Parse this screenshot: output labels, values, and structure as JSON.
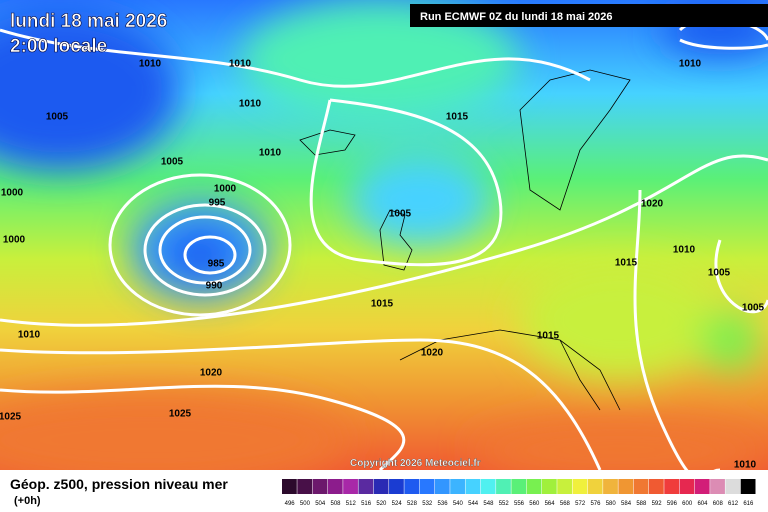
{
  "header": {
    "date": "lundi 18 mai 2026",
    "time": "2:00 locale",
    "run": "Run ECMWF 0Z du lundi 18 mai 2026"
  },
  "copyright": "Copyright 2026 Meteociel.fr",
  "legend": {
    "title": "Géop. z500, pression niveau mer",
    "step": "(+0h)",
    "levels": [
      496,
      500,
      504,
      508,
      512,
      516,
      520,
      524,
      528,
      532,
      536,
      540,
      544,
      548,
      552,
      556,
      560,
      564,
      568,
      572,
      576,
      580,
      584,
      588,
      592,
      596,
      600,
      604,
      608,
      612,
      616
    ],
    "colors": [
      "#2c0a2c",
      "#481048",
      "#6c186c",
      "#8c1c8c",
      "#a828a8",
      "#5a2aa0",
      "#2a2ab4",
      "#1a3cd2",
      "#1e5af0",
      "#2878ff",
      "#3296ff",
      "#3cb4ff",
      "#46d2ff",
      "#50f0f0",
      "#50f0b4",
      "#5af078",
      "#78f050",
      "#a0f03c",
      "#c8f03c",
      "#f0f03c",
      "#f0d23c",
      "#f0b43c",
      "#f09632",
      "#f07832",
      "#f05a32",
      "#f03c3c",
      "#e62850",
      "#d21e78",
      "#dc8cb4",
      "#dcdcdc",
      "#000000"
    ]
  },
  "isobars": [
    1010,
    1010,
    1005,
    1010,
    1015,
    1010,
    1005,
    1000,
    1000,
    995,
    1005,
    1020,
    1000,
    1010,
    985,
    1015,
    990,
    1005,
    1015,
    1005,
    1010,
    1015,
    1020,
    1020,
    1025,
    1025,
    1010,
    1010
  ]
}
